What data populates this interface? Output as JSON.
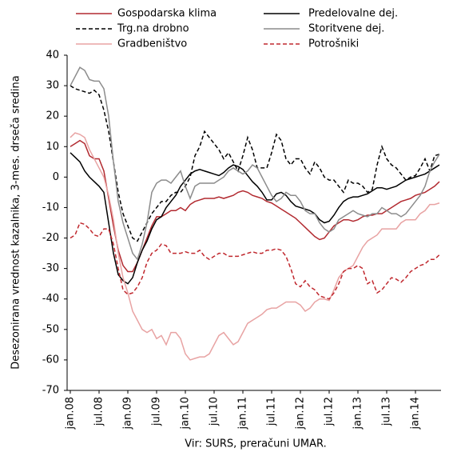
{
  "chart_data": {
    "type": "line",
    "y_axis_label": "Desezonirana vrednost kazalnika, 3-mes. drseča sredina",
    "source": "Vir: SURS, preračuni UMAR.",
    "categories": [
      "jan.08",
      null,
      null,
      null,
      null,
      null,
      "jul.08",
      null,
      null,
      null,
      null,
      null,
      "jan.09",
      null,
      null,
      null,
      null,
      null,
      "jul.09",
      null,
      null,
      null,
      null,
      null,
      "jan.10",
      null,
      null,
      null,
      null,
      null,
      "jul.10",
      null,
      null,
      null,
      null,
      null,
      "jan.11",
      null,
      null,
      null,
      null,
      null,
      "jul.11",
      null,
      null,
      null,
      null,
      null,
      "jan.12",
      null,
      null,
      null,
      null,
      null,
      "jul.12",
      null,
      null,
      null,
      null,
      null,
      "jan.13",
      null,
      null,
      null,
      null,
      null,
      "jul.13",
      null,
      null,
      null,
      null,
      null,
      "jan.14",
      null,
      null,
      null,
      null,
      null
    ],
    "ylim": [
      -70,
      40
    ],
    "yticks": [
      -70,
      -60,
      -50,
      -40,
      -30,
      -20,
      -10,
      0,
      10,
      20,
      30,
      40
    ],
    "series": [
      {
        "name": "Gospodarska klima",
        "color": "#b22a30",
        "dashed": false,
        "values": [
          10,
          11,
          12,
          11,
          7,
          6,
          6,
          2,
          -7,
          -16,
          -24,
          -29,
          -31,
          -31,
          -28,
          -24,
          -20,
          -16,
          -13,
          -13,
          -12,
          -11,
          -11,
          -10,
          -11,
          -9,
          -8,
          -7.5,
          -7,
          -7,
          -7,
          -6.5,
          -7,
          -6.5,
          -6,
          -5,
          -4.5,
          -5,
          -6,
          -6.5,
          -7,
          -8,
          -8.5,
          -9.5,
          -10.5,
          -11.5,
          -12.5,
          -13.5,
          -15,
          -16.5,
          -18,
          -19.5,
          -20.5,
          -20,
          -18,
          -16,
          -15,
          -14,
          -14,
          -14.5,
          -14,
          -13,
          -12.5,
          -12.5,
          -12,
          -12,
          -11,
          -10,
          -9,
          -8,
          -7.5,
          -7,
          -6,
          -5.5,
          -5,
          -4,
          -3,
          -1.5
        ]
      },
      {
        "name": "Predelovalne dej.",
        "color": "#000000",
        "dashed": false,
        "values": [
          8,
          6.5,
          5,
          2,
          0,
          -1.5,
          -3,
          -5,
          -15,
          -25,
          -32,
          -34,
          -35,
          -33,
          -28,
          -24,
          -21,
          -17,
          -14,
          -13,
          -10,
          -8,
          -6,
          -3,
          -1,
          1,
          2,
          2.5,
          2,
          1.5,
          1,
          0.5,
          1.5,
          3,
          4,
          3.5,
          2.5,
          0.5,
          -1.5,
          -3,
          -5,
          -7.5,
          -7.5,
          -5.5,
          -5,
          -6,
          -8,
          -9.5,
          -10,
          -10.5,
          -11,
          -12,
          -14,
          -15,
          -14.5,
          -12.5,
          -10,
          -8,
          -7,
          -6.5,
          -6.5,
          -6,
          -5.5,
          -4.5,
          -3.5,
          -3.5,
          -4,
          -3.5,
          -3,
          -2,
          -1,
          -0.5,
          0,
          0.5,
          1,
          2,
          3,
          4
        ]
      },
      {
        "name": "Trg.na drobno",
        "color": "#000000",
        "dashed": true,
        "values": [
          30,
          29,
          28.5,
          28,
          27.5,
          28.5,
          27,
          22,
          15,
          5,
          -5,
          -12,
          -16,
          -20,
          -21,
          -18,
          -15,
          -12,
          -10,
          -8,
          -8,
          -6,
          -5,
          -5,
          -3,
          0,
          7,
          10,
          15,
          13,
          11,
          9,
          6,
          8,
          5,
          2,
          7,
          13,
          9,
          3,
          3,
          3,
          8,
          14,
          12,
          6,
          4,
          6,
          6,
          3,
          1,
          5,
          3,
          0,
          -1,
          -1,
          -3,
          -5,
          -1,
          -2,
          -2,
          -3,
          -5,
          -4,
          4,
          10,
          6,
          4,
          3,
          1,
          -1,
          0,
          0.5,
          3,
          6,
          2,
          7,
          7.5
        ]
      },
      {
        "name": "Storitvene dej.",
        "color": "#8c8c8c",
        "dashed": false,
        "values": [
          30,
          33,
          36,
          35,
          32,
          31.5,
          31.5,
          29,
          20,
          5,
          -8,
          -15,
          -20,
          -25,
          -27,
          -22,
          -15,
          -5,
          -2,
          -1,
          -1,
          -2,
          0,
          2,
          -3,
          -7,
          -3,
          -2,
          -2,
          -2,
          -2,
          -1,
          0,
          2,
          3,
          2,
          1,
          2,
          4,
          3,
          0,
          -3,
          -6,
          -8,
          -7,
          -5,
          -6,
          -6,
          -8,
          -11,
          -12,
          -12,
          -15,
          -17,
          -18,
          -17,
          -14,
          -13,
          -12,
          -11,
          -12,
          -12.5,
          -13,
          -12,
          -12,
          -10,
          -11,
          -12,
          -12,
          -13,
          -12,
          -10,
          -8,
          -6,
          -3,
          2,
          5,
          7.5
        ]
      },
      {
        "name": "Gradbeništvo",
        "color": "#e8a3a3",
        "dashed": false,
        "values": [
          13,
          14.5,
          14,
          13,
          9,
          6,
          3,
          0,
          -6,
          -14,
          -25,
          -33,
          -38,
          -44,
          -47,
          -50,
          -51,
          -50,
          -53,
          -52,
          -55,
          -51,
          -51,
          -53,
          -58,
          -60,
          -59.5,
          -59,
          -59,
          -58,
          -55,
          -52,
          -51,
          -53,
          -55,
          -54,
          -51,
          -48,
          -47,
          -46,
          -45,
          -43.5,
          -43,
          -43,
          -42,
          -41,
          -41,
          -41,
          -42,
          -44,
          -43,
          -41,
          -40,
          -40,
          -40.5,
          -37,
          -33,
          -31,
          -30,
          -29,
          -26,
          -23,
          -21,
          -20,
          -19,
          -17,
          -17,
          -17,
          -17,
          -15,
          -14,
          -14,
          -14,
          -12,
          -11,
          -9,
          -9,
          -8.5
        ]
      },
      {
        "name": "Potrošniki",
        "color": "#c0282e",
        "dashed": true,
        "values": [
          -20,
          -19,
          -15,
          -15.5,
          -17,
          -19,
          -19.5,
          -17,
          -17,
          -22,
          -30,
          -37,
          -38.5,
          -38,
          -36,
          -33,
          -28,
          -25,
          -24,
          -22,
          -22.5,
          -25,
          -25,
          -25,
          -24.5,
          -25,
          -25,
          -24,
          -26,
          -27,
          -26,
          -25,
          -25,
          -26,
          -26,
          -26,
          -25.5,
          -25,
          -24.5,
          -25,
          -25,
          -24,
          -24,
          -23.5,
          -24,
          -26,
          -30,
          -35,
          -36,
          -34,
          -36,
          -37,
          -39,
          -39.5,
          -40,
          -38,
          -35,
          -31,
          -30,
          -30,
          -29,
          -30,
          -35,
          -34,
          -38,
          -37,
          -35,
          -33,
          -33.5,
          -34.5,
          -33,
          -31,
          -30,
          -29,
          -28.5,
          -27,
          -27,
          -25.5
        ]
      }
    ]
  }
}
